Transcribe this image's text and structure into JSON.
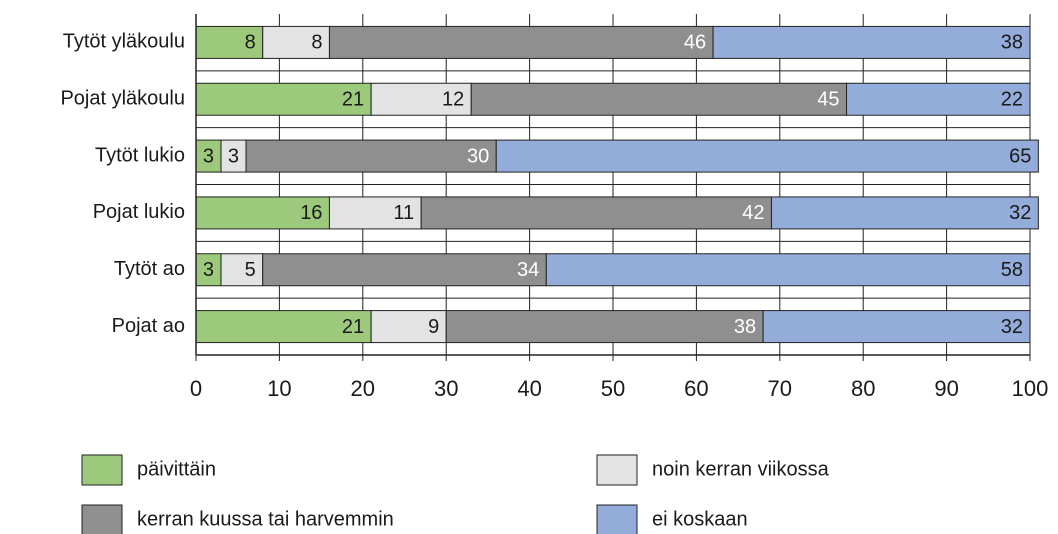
{
  "chart_data": {
    "type": "stacked_barh",
    "categories": [
      "Tytöt yläkoulu",
      "Pojat yläkoulu",
      "Tytöt lukio",
      "Pojat lukio",
      "Tytöt ao",
      "Pojat ao"
    ],
    "series": [
      {
        "name": "päivittäin",
        "color": "#9dc97d",
        "text_color": "#1a1a1a",
        "values": [
          8,
          21,
          3,
          16,
          3,
          21
        ]
      },
      {
        "name": "noin kerran viikossa",
        "color": "#e3e3e3",
        "text_color": "#1a1a1a",
        "values": [
          8,
          12,
          3,
          11,
          5,
          9
        ]
      },
      {
        "name": "kerran kuussa tai harvemmin",
        "color": "#8f8f8f",
        "text_color": "#ffffff",
        "values": [
          46,
          45,
          30,
          42,
          34,
          38
        ]
      },
      {
        "name": "ei koskaan",
        "color": "#94acd9",
        "text_color": "#1a1a1a",
        "values": [
          38,
          22,
          65,
          32,
          58,
          32
        ]
      }
    ],
    "xlim": [
      0,
      100
    ],
    "xticks": [
      0,
      10,
      20,
      30,
      40,
      50,
      60,
      70,
      80,
      90,
      100
    ],
    "grid": true
  }
}
